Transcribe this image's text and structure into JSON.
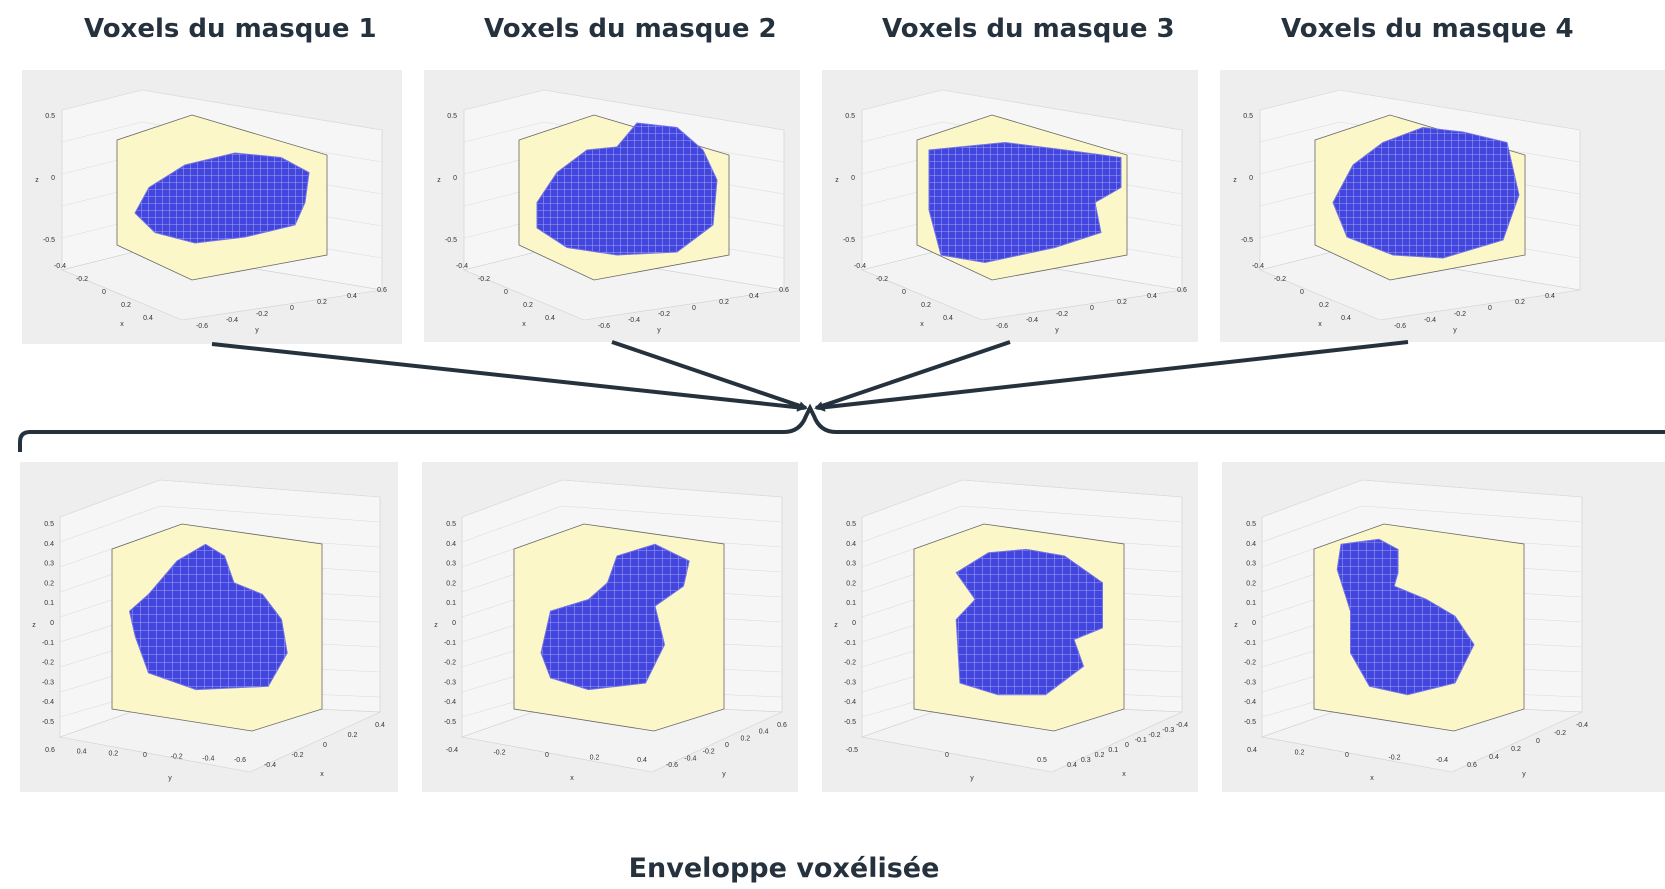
{
  "titles": [
    "Voxels du masque 1",
    "Voxels du masque 2",
    "Voxels du masque 3",
    "Voxels du masque 4"
  ],
  "footer": "Enveloppe voxélisée",
  "colors": {
    "text": "#25323d",
    "connector": "#25323d",
    "voxel": "#3a3de0",
    "box_fill": "#fbf7c8",
    "panel_bg": "#eeeeee"
  },
  "top_panels": [
    {
      "ztick": [
        "0.5",
        "0",
        "-0.5"
      ],
      "xticks": [
        "-0.4",
        "-0.2",
        "0",
        "0.2",
        "0.4"
      ],
      "yticks": [
        "-0.6",
        "-0.4",
        "-0.2",
        "0",
        "0.2",
        "0.4",
        "0.6"
      ],
      "xlabel": "x",
      "ylabel": "y",
      "zlabel": "z"
    },
    {
      "ztick": [
        "0.5",
        "0",
        "-0.5"
      ],
      "xticks": [
        "-0.4",
        "-0.2",
        "0",
        "0.2",
        "0.4"
      ],
      "yticks": [
        "-0.6",
        "-0.4",
        "-0.2",
        "0",
        "0.2",
        "0.4",
        "0.6"
      ],
      "xlabel": "x",
      "ylabel": "y",
      "zlabel": "z"
    },
    {
      "ztick": [
        "0.5",
        "0",
        "-0.5"
      ],
      "xticks": [
        "-0.4",
        "-0.2",
        "0",
        "0.2",
        "0.4"
      ],
      "yticks": [
        "-0.6",
        "-0.4",
        "-0.2",
        "0",
        "0.2",
        "0.4",
        "0.6"
      ],
      "xlabel": "x",
      "ylabel": "y",
      "zlabel": "z"
    },
    {
      "ztick": [
        "0.5",
        "0",
        "-0.5"
      ],
      "xticks": [
        "-0.4",
        "-0.2",
        "0",
        "0.2",
        "0.4"
      ],
      "yticks": [
        "-0.6",
        "-0.4",
        "-0.2",
        "0",
        "0.2",
        "0.4"
      ],
      "xlabel": "x",
      "ylabel": "y",
      "zlabel": "z"
    }
  ],
  "bottom_panels": [
    {
      "zticks": [
        "0.5",
        "0.4",
        "0.3",
        "0.2",
        "0.1",
        "0",
        "-0.1",
        "-0.2",
        "-0.3",
        "-0.4",
        "-0.5"
      ],
      "lticks": [
        "0.6",
        "0.4",
        "0.2",
        "0",
        "-0.2",
        "-0.4",
        "-0.6"
      ],
      "rticks": [
        "-0.4",
        "-0.2",
        "0",
        "0.2",
        "0.4"
      ],
      "llabel": "y",
      "rlabel": "x",
      "zlabel": "z"
    },
    {
      "zticks": [
        "0.5",
        "0.4",
        "0.3",
        "0.2",
        "0.1",
        "0",
        "-0.1",
        "-0.2",
        "-0.3",
        "-0.4",
        "-0.5"
      ],
      "lticks": [
        "-0.4",
        "-0.2",
        "0",
        "0.2",
        "0.4"
      ],
      "rticks": [
        "-0.6",
        "-0.4",
        "-0.2",
        "0",
        "0.2",
        "0.4",
        "0.6"
      ],
      "llabel": "x",
      "rlabel": "y",
      "zlabel": "z"
    },
    {
      "zticks": [
        "0.5",
        "0.4",
        "0.3",
        "0.2",
        "0.1",
        "0",
        "-0.1",
        "-0.2",
        "-0.3",
        "-0.4",
        "-0.5"
      ],
      "lticks": [
        "-0.5",
        "0",
        "0.5"
      ],
      "rticks": [
        "0.4",
        "0.3",
        "0.2",
        "0.1",
        "0",
        "-0.1",
        "-0.2",
        "-0.3",
        "-0.4"
      ],
      "llabel": "y",
      "rlabel": "x",
      "zlabel": "z"
    },
    {
      "zticks": [
        "0.5",
        "0.4",
        "0.3",
        "0.2",
        "0.1",
        "0",
        "-0.1",
        "-0.2",
        "-0.3",
        "-0.4",
        "-0.5"
      ],
      "lticks": [
        "0.4",
        "0.2",
        "0",
        "-0.2",
        "-0.4"
      ],
      "rticks": [
        "0.6",
        "0.4",
        "0.2",
        "0",
        "-0.2",
        "-0.4"
      ],
      "llabel": "x",
      "rlabel": "y",
      "zlabel": "z"
    }
  ]
}
